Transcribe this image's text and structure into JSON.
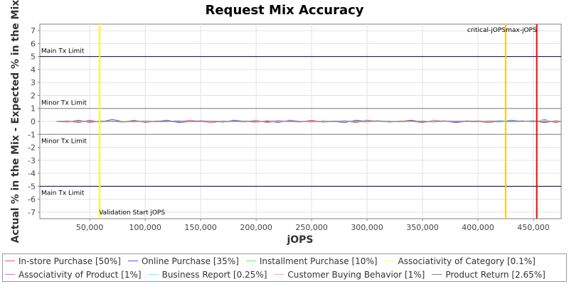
{
  "chart_data": {
    "type": "line",
    "title": "Request Mix Accuracy",
    "xlabel": "jOPS",
    "ylabel": "Actual % in the Mix - Expected % in the Mix",
    "xlim": [
      5000,
      475000
    ],
    "ylim": [
      -7.5,
      7.5
    ],
    "x_ticks": [
      50000,
      100000,
      150000,
      200000,
      250000,
      300000,
      350000,
      400000,
      450000
    ],
    "x_tick_labels": [
      "50,000",
      "100,000",
      "150,000",
      "200,000",
      "250,000",
      "300,000",
      "350,000",
      "400,000",
      "450,000"
    ],
    "y_ticks": [
      -7,
      -6,
      -5,
      -4,
      -3,
      -2,
      -1,
      0,
      1,
      2,
      3,
      4,
      5,
      6,
      7
    ],
    "y_tick_labels": [
      "-7",
      "-6",
      "-5",
      "-4",
      "-3",
      "-2",
      "-1",
      "0",
      "1",
      "2",
      "3",
      "4",
      "5",
      "6",
      "7"
    ],
    "grid": true,
    "limit_lines": [
      {
        "label": "Main Tx Limit",
        "y": 5
      },
      {
        "label": "Minor Tx Limit",
        "y": 1
      },
      {
        "label": "Minor Tx Limit",
        "y": -1
      },
      {
        "label": "Main Tx Limit",
        "y": -5
      }
    ],
    "markers": [
      {
        "label": "Validation Start jOPS",
        "x": 59000,
        "color": "#ffff00",
        "label_position": "bottom"
      },
      {
        "label": "critical-jOPS",
        "x": 425000,
        "color": "#ffc800",
        "label_position": "top"
      },
      {
        "label": "max-jOPS",
        "x": 453000,
        "color": "#ff0000",
        "label_position": "top"
      }
    ],
    "legend_position": "bottom",
    "x": [
      20000,
      30000,
      40000,
      50000,
      60000,
      70000,
      80000,
      90000,
      100000,
      110000,
      120000,
      130000,
      140000,
      150000,
      160000,
      170000,
      180000,
      190000,
      200000,
      210000,
      220000,
      230000,
      240000,
      250000,
      260000,
      270000,
      280000,
      290000,
      300000,
      310000,
      320000,
      330000,
      340000,
      350000,
      360000,
      370000,
      380000,
      390000,
      400000,
      410000,
      420000,
      430000,
      440000,
      450000,
      460000,
      470000,
      475000
    ],
    "series": [
      {
        "name": "In-store Purchase [50%]",
        "color": "#ff5555",
        "values": [
          0.0,
          -0.05,
          0.1,
          -0.1,
          0.05,
          0.0,
          -0.05,
          0.1,
          -0.1,
          0.05,
          0.0,
          -0.05,
          0.1,
          0.0,
          -0.1,
          0.05,
          0.0,
          -0.05,
          0.1,
          -0.1,
          0.05,
          0.0,
          -0.05,
          0.1,
          -0.05,
          0.0,
          0.05,
          -0.1,
          0.1,
          0.0,
          -0.05,
          0.05,
          0.0,
          -0.1,
          0.1,
          0.0,
          -0.05,
          0.05,
          0.0,
          -0.1,
          0.05,
          0.0,
          0.05,
          -0.05,
          0.15,
          -0.1,
          0.0
        ]
      },
      {
        "name": "Online Purchase [35%]",
        "color": "#5555ff",
        "values": [
          0.0,
          0.05,
          -0.1,
          0.1,
          -0.05,
          0.15,
          0.0,
          0.05,
          -0.05,
          0.0,
          0.1,
          -0.1,
          0.0,
          0.05,
          0.0,
          -0.05,
          0.1,
          0.0,
          -0.05,
          0.05,
          -0.1,
          0.1,
          0.0,
          -0.05,
          0.05,
          0.0,
          -0.1,
          0.1,
          0.0,
          0.05,
          -0.05,
          0.0,
          0.1,
          -0.05,
          0.0,
          0.05,
          -0.1,
          0.0,
          0.05,
          0.0,
          -0.05,
          0.1,
          0.0,
          0.05,
          -0.1,
          0.05,
          0.0
        ]
      },
      {
        "name": "Installment Purchase [10%]",
        "color": "#55ff55",
        "values": [
          0.0,
          0.02,
          -0.03,
          0.04,
          0.0,
          -0.02,
          0.03,
          -0.04,
          0.02,
          0.0,
          -0.03,
          0.03,
          0.0,
          0.02,
          -0.02,
          0.04,
          0.0,
          -0.03,
          0.02,
          0.0,
          0.03,
          -0.02,
          0.0,
          0.02,
          -0.03,
          0.04,
          0.0,
          -0.02,
          0.03,
          0.0,
          -0.04,
          0.02,
          0.0,
          0.03,
          -0.02,
          0.0,
          0.02,
          -0.03,
          0.0,
          0.04,
          -0.02,
          0.0,
          0.03,
          -0.02,
          0.05,
          -0.03,
          0.0
        ]
      },
      {
        "name": "Associativity of Category [0.1%]",
        "color": "#ffff55",
        "values": [
          0.0,
          0.01,
          -0.01,
          0.02,
          0.0,
          -0.01,
          0.01,
          0.0,
          -0.02,
          0.01,
          0.0,
          0.01,
          -0.01,
          0.0,
          0.02,
          -0.01,
          0.0,
          0.01,
          0.0,
          -0.01,
          0.01,
          0.0,
          -0.01,
          0.02,
          0.0,
          -0.01,
          0.01,
          0.0,
          -0.02,
          0.01,
          0.0,
          0.01,
          -0.01,
          0.0,
          0.01,
          0.0,
          -0.01,
          0.01,
          0.0,
          -0.01,
          0.02,
          0.0,
          -0.01,
          0.01,
          0.0,
          0.01,
          0.0
        ]
      },
      {
        "name": "Associativity of Product [1%]",
        "color": "#ff55ff",
        "values": [
          0.0,
          -0.02,
          0.03,
          -0.03,
          0.02,
          0.0,
          -0.02,
          0.02,
          0.0,
          -0.03,
          0.03,
          0.0,
          -0.02,
          0.02,
          0.0,
          0.03,
          -0.02,
          0.0,
          0.02,
          -0.03,
          0.0,
          0.02,
          -0.02,
          0.0,
          0.03,
          -0.02,
          0.0,
          0.02,
          -0.03,
          0.0,
          0.02,
          -0.02,
          0.0,
          0.03,
          -0.02,
          0.0,
          0.02,
          0.0,
          -0.03,
          0.02,
          0.0,
          -0.02,
          0.03,
          0.0,
          -0.02,
          0.02,
          0.0
        ]
      },
      {
        "name": "Business Report [0.25%]",
        "color": "#55ffff",
        "values": [
          0.0,
          0.01,
          0.0,
          -0.01,
          0.02,
          0.0,
          -0.01,
          0.01,
          0.0,
          -0.02,
          0.01,
          0.0,
          0.01,
          -0.01,
          0.0,
          0.02,
          -0.01,
          0.0,
          0.01,
          0.0,
          -0.01,
          0.02,
          0.0,
          -0.01,
          0.01,
          0.0,
          -0.01,
          0.01,
          0.0,
          0.02,
          -0.01,
          0.0,
          0.01,
          -0.02,
          0.0,
          0.01,
          0.0,
          -0.01,
          0.01,
          0.0,
          -0.01,
          0.02,
          0.0,
          -0.01,
          0.01,
          0.0,
          0.0
        ]
      },
      {
        "name": "Customer Buying Behavior [1%]",
        "color": "#ffaaaa",
        "values": [
          0.0,
          0.03,
          -0.02,
          0.05,
          -0.03,
          0.02,
          0.0,
          -0.04,
          0.03,
          0.0,
          -0.02,
          0.04,
          0.0,
          -0.03,
          0.02,
          0.0,
          0.03,
          -0.02,
          0.05,
          0.0,
          -0.03,
          0.02,
          0.0,
          -0.04,
          0.03,
          0.0,
          0.02,
          -0.03,
          0.0,
          0.04,
          -0.02,
          0.0,
          0.03,
          0.0,
          -0.02,
          0.04,
          0.0,
          -0.03,
          0.02,
          0.0,
          0.05,
          -0.02,
          0.0,
          0.03,
          0.08,
          -0.03,
          0.0
        ]
      },
      {
        "name": "Product Return [2.65%]",
        "color": "#808080",
        "values": [
          0.0,
          -0.03,
          0.04,
          0.0,
          -0.02,
          0.03,
          -0.05,
          0.0,
          0.03,
          -0.02,
          0.0,
          0.04,
          -0.03,
          0.0,
          0.02,
          -0.04,
          0.0,
          0.03,
          -0.02,
          0.0,
          0.05,
          -0.03,
          0.0,
          0.02,
          -0.04,
          0.0,
          0.03,
          0.0,
          -0.02,
          0.04,
          0.0,
          -0.03,
          0.02,
          0.0,
          -0.04,
          0.03,
          0.0,
          0.02,
          -0.03,
          0.0,
          0.04,
          -0.02,
          0.0,
          0.03,
          -0.05,
          0.02,
          0.0
        ]
      }
    ]
  }
}
